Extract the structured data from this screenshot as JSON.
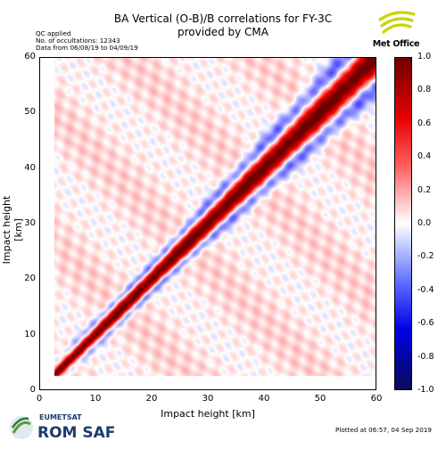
{
  "header": {
    "title_line1": "BA Vertical (O-B)/B correlations for FY-3C",
    "title_line2": "provided by CMA",
    "info_qc": "QC applied",
    "info_count": "No. of occultations: 12343",
    "info_dates": "Data from 06/08/19 to 04/09/19"
  },
  "logos": {
    "metoffice_text": "Met Office",
    "eumetsat_text": "EUMETSAT",
    "romsaf_text": "ROM SAF"
  },
  "footer": {
    "plotted": "Plotted at 06:57, 04 Sep 2019"
  },
  "chart_data": {
    "type": "heatmap",
    "title": "BA Vertical (O-B)/B correlations for FY-3C",
    "subtitle": "provided by CMA",
    "xlabel": "Impact height [km]",
    "ylabel": "Impact height [km]",
    "xlim": [
      0,
      60
    ],
    "ylim": [
      0,
      60
    ],
    "x_ticks": [
      "0",
      "10",
      "20",
      "30",
      "40",
      "50",
      "60"
    ],
    "y_ticks": [
      "0",
      "10",
      "20",
      "30",
      "40",
      "50",
      "60"
    ],
    "data_extent": [
      2.5,
      60
    ],
    "colorbar": {
      "range": [
        -1.0,
        1.0
      ],
      "ticks": [
        "-1.0",
        "-0.8",
        "-0.6",
        "-0.4",
        "-0.2",
        "0.0",
        "0.2",
        "0.4",
        "0.6",
        "0.8",
        "1.0"
      ],
      "colormap": "seismic"
    },
    "diagonal_value": 1.0,
    "correlation_halfwidth_km": [
      {
        "height": 3,
        "width": 0.6
      },
      {
        "height": 25,
        "width": 1.3
      },
      {
        "height": 60,
        "width": 2.2
      }
    ],
    "negative_lobe": {
      "value": -0.35,
      "offset_km": [
        {
          "height": 20,
          "offset": 2.2
        },
        {
          "height": 60,
          "offset": 5.5
        }
      ]
    },
    "grid": false
  }
}
